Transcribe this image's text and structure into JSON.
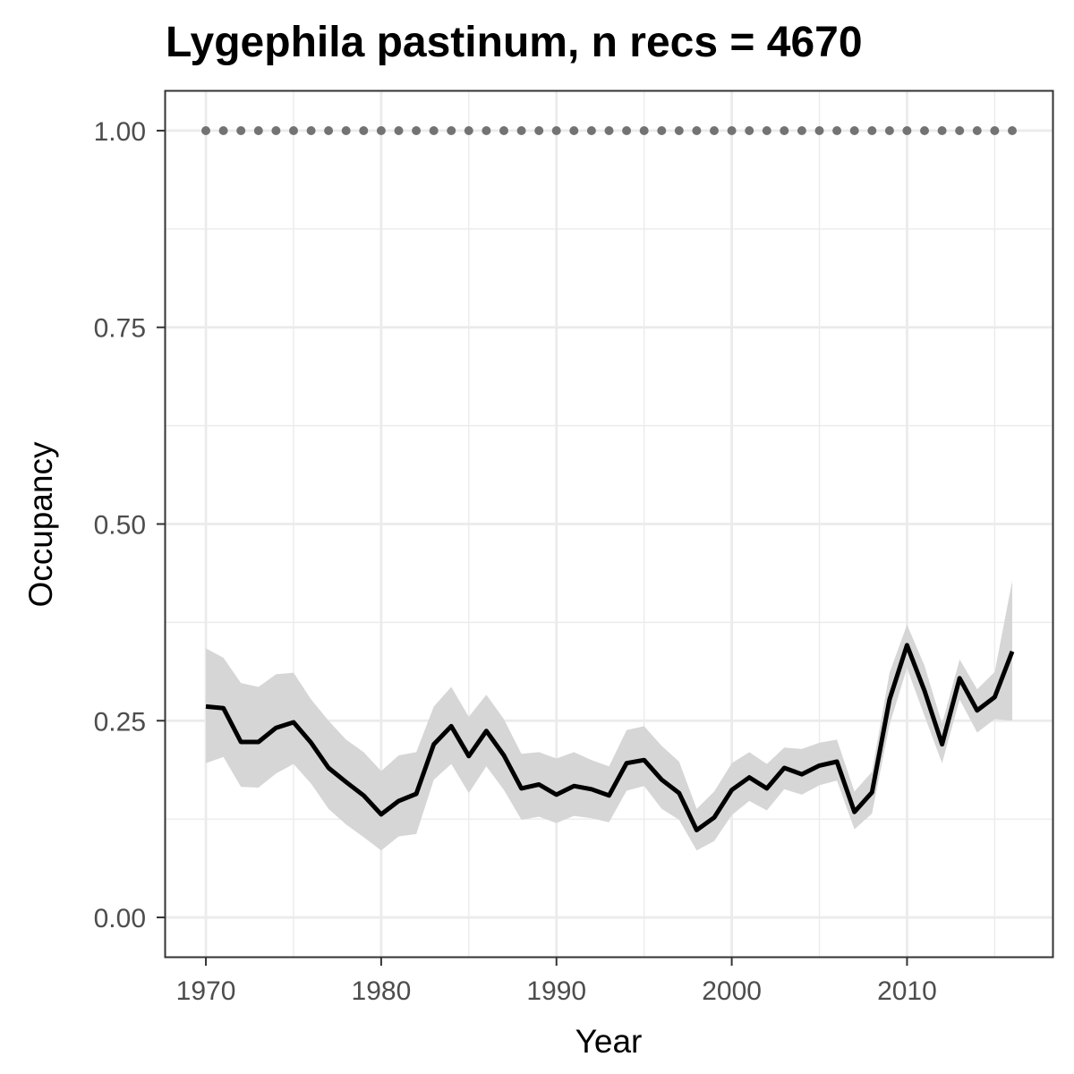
{
  "chart_data": {
    "type": "line",
    "title": "Lygephila pastinum, n recs = 4670",
    "xlabel": "Year",
    "ylabel": "Occupancy",
    "xlim": [
      1967.7,
      2018.3
    ],
    "ylim": [
      -0.05,
      1.05
    ],
    "x_ticks": [
      1970,
      1980,
      1990,
      2000,
      2010
    ],
    "x_tick_labels": [
      "1970",
      "1980",
      "1990",
      "2000",
      "2010"
    ],
    "y_ticks": [
      0,
      0.25,
      0.5,
      0.75,
      1.0
    ],
    "y_tick_labels": [
      "0.00",
      "0.25",
      "0.50",
      "0.75",
      "1.00"
    ],
    "grid": true,
    "x": [
      1970,
      1971,
      1972,
      1973,
      1974,
      1975,
      1976,
      1977,
      1978,
      1979,
      1980,
      1981,
      1982,
      1983,
      1984,
      1985,
      1986,
      1987,
      1988,
      1989,
      1990,
      1991,
      1992,
      1993,
      1994,
      1995,
      1996,
      1997,
      1998,
      1999,
      2000,
      2001,
      2002,
      2003,
      2004,
      2005,
      2006,
      2007,
      2008,
      2009,
      2010,
      2011,
      2012,
      2013,
      2014,
      2015,
      2016
    ],
    "series": [
      {
        "values": [
          0.268,
          0.266,
          0.223,
          0.223,
          0.241,
          0.248,
          0.222,
          0.19,
          0.172,
          0.155,
          0.131,
          0.148,
          0.157,
          0.22,
          0.243,
          0.205,
          0.237,
          0.206,
          0.164,
          0.169,
          0.156,
          0.167,
          0.163,
          0.155,
          0.196,
          0.2,
          0.175,
          0.158,
          0.111,
          0.127,
          0.162,
          0.178,
          0.164,
          0.19,
          0.182,
          0.193,
          0.198,
          0.134,
          0.159,
          0.277,
          0.346,
          0.288,
          0.22,
          0.304,
          0.263,
          0.28,
          0.338
        ],
        "lower": [
          0.196,
          0.204,
          0.166,
          0.165,
          0.183,
          0.195,
          0.17,
          0.138,
          0.118,
          0.102,
          0.085,
          0.103,
          0.106,
          0.175,
          0.195,
          0.158,
          0.192,
          0.162,
          0.124,
          0.128,
          0.12,
          0.129,
          0.126,
          0.121,
          0.161,
          0.167,
          0.138,
          0.124,
          0.085,
          0.097,
          0.13,
          0.148,
          0.136,
          0.163,
          0.156,
          0.168,
          0.174,
          0.112,
          0.132,
          0.245,
          0.317,
          0.256,
          0.196,
          0.277,
          0.235,
          0.252,
          0.25
        ],
        "upper": [
          0.342,
          0.33,
          0.298,
          0.293,
          0.309,
          0.311,
          0.277,
          0.25,
          0.226,
          0.21,
          0.186,
          0.206,
          0.21,
          0.268,
          0.293,
          0.255,
          0.283,
          0.252,
          0.208,
          0.21,
          0.202,
          0.21,
          0.2,
          0.192,
          0.238,
          0.243,
          0.218,
          0.198,
          0.138,
          0.16,
          0.196,
          0.21,
          0.195,
          0.216,
          0.214,
          0.222,
          0.226,
          0.16,
          0.185,
          0.311,
          0.372,
          0.32,
          0.246,
          0.328,
          0.29,
          0.312,
          0.428
        ]
      },
      {
        "values": [
          1,
          1,
          1,
          1,
          1,
          1,
          1,
          1,
          1,
          1,
          1,
          1,
          1,
          1,
          1,
          1,
          1,
          1,
          1,
          1,
          1,
          1,
          1,
          1,
          1,
          1,
          1,
          1,
          1,
          1,
          1,
          1,
          1,
          1,
          1,
          1,
          1,
          1,
          1,
          1,
          1,
          1,
          1,
          1,
          1,
          1,
          1
        ]
      }
    ],
    "colors": {
      "line": "#000000",
      "ribbon": "#d6d6d6",
      "points": "#737373",
      "grid": "#ebebeb",
      "panel_border": "#333333"
    }
  }
}
